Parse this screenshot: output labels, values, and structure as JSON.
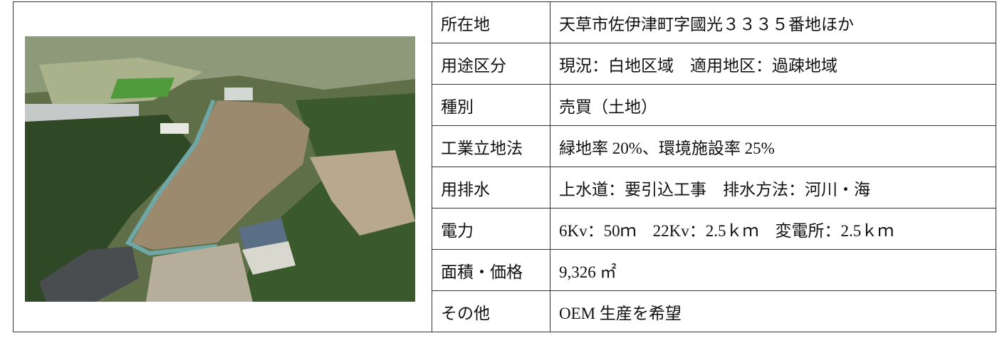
{
  "table": {
    "rows": [
      [
        "所在地",
        "天草市佐伊津町字國光３３３５番地ほか"
      ],
      [
        "用途区分",
        "現況：白地区域　適用地区：過疎地域"
      ],
      [
        "種別",
        "売買（土地）"
      ],
      [
        "工業立地法",
        "緑地率 20%、環境施設率 25%"
      ],
      [
        "用排水",
        "上水道：要引込工事　排水方法：河川・海"
      ],
      [
        "電力",
        "6Kv：50ｍ　22Kv：2.5ｋｍ　変電所：2.5ｋｍ"
      ],
      [
        "面積・価格",
        "9,326 ㎡"
      ],
      [
        "その他",
        "OEM 生産を希望"
      ]
    ]
  }
}
